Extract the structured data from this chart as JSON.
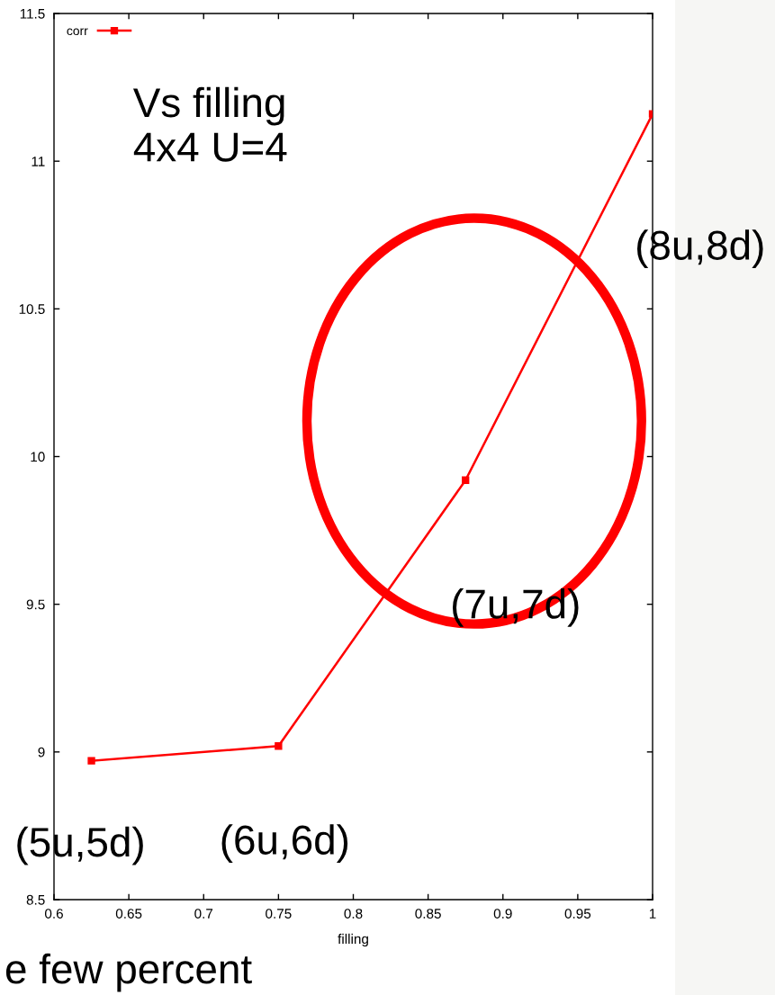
{
  "chart_data": {
    "type": "line",
    "xlabel": "filling",
    "x": [
      0.625,
      0.75,
      0.875,
      1
    ],
    "series": [
      {
        "name": "corr",
        "color": "#ff0000",
        "values": [
          8.97,
          9.02,
          9.92,
          11.16
        ]
      }
    ],
    "xlim": [
      0.6,
      1
    ],
    "ylim": [
      8.5,
      11.5
    ],
    "xticks": [
      0.6,
      0.65,
      0.7,
      0.75,
      0.8,
      0.85,
      0.9,
      0.95,
      1
    ],
    "yticks": [
      8.5,
      9,
      9.5,
      10,
      10.5,
      11,
      11.5
    ],
    "legend": "top left",
    "marker": "square",
    "line_style": "solid",
    "annotations": [
      "Vs filling\n4x4 U=4",
      {
        "text": "(5u,5d)",
        "x": 0.625,
        "y": 8.97
      },
      {
        "text": "(6u,6d)",
        "x": 0.75,
        "y": 9.02
      },
      {
        "text": "(7u,7d)",
        "x": 0.875,
        "y": 9.92
      },
      {
        "text": "(8u,8d)",
        "x": 1,
        "y": 11.16
      },
      "e few percent"
    ]
  }
}
